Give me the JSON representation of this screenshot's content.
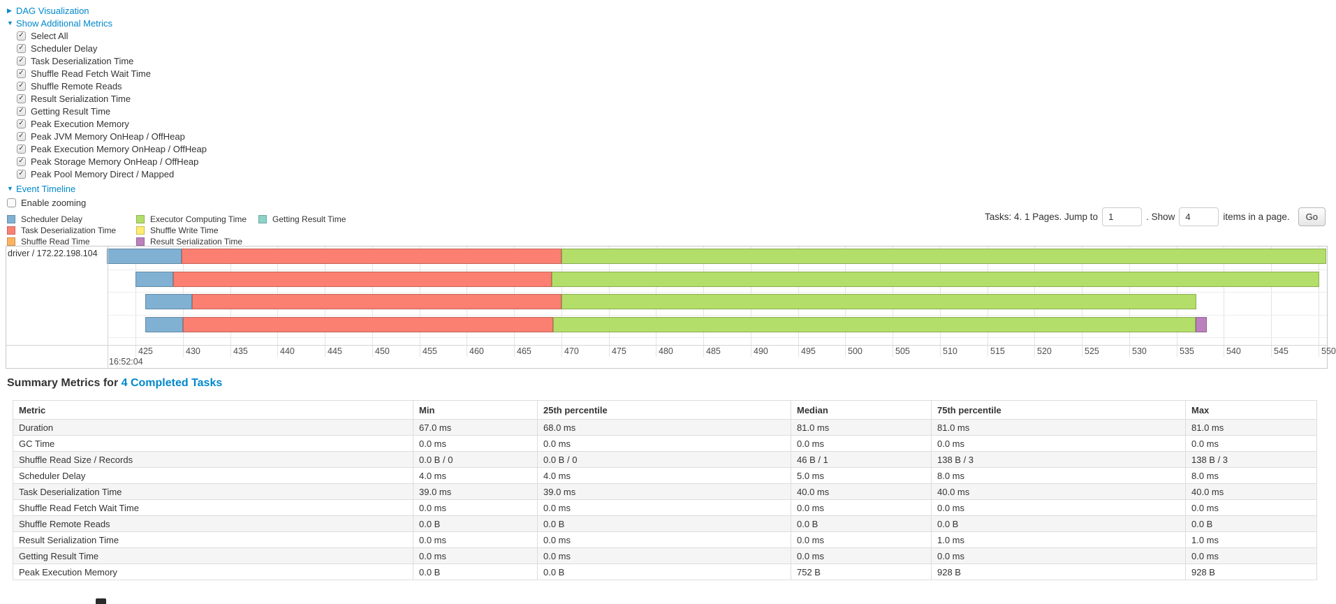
{
  "icons": {
    "collapsed": "▶",
    "expanded": "▼",
    "check": "✓"
  },
  "colors": {
    "link": "#0088cc"
  },
  "controls": {
    "dag_label": "DAG Visualization",
    "metrics_label": "Show Additional Metrics",
    "checkboxes": [
      {
        "label": "Select All",
        "checked": true
      },
      {
        "label": "Scheduler Delay",
        "checked": true
      },
      {
        "label": "Task Deserialization Time",
        "checked": true
      },
      {
        "label": "Shuffle Read Fetch Wait Time",
        "checked": true
      },
      {
        "label": "Shuffle Remote Reads",
        "checked": true
      },
      {
        "label": "Result Serialization Time",
        "checked": true
      },
      {
        "label": "Getting Result Time",
        "checked": true
      },
      {
        "label": "Peak Execution Memory",
        "checked": true
      },
      {
        "label": "Peak JVM Memory OnHeap / OffHeap",
        "checked": true
      },
      {
        "label": "Peak Execution Memory OnHeap / OffHeap",
        "checked": true
      },
      {
        "label": "Peak Storage Memory OnHeap / OffHeap",
        "checked": true
      },
      {
        "label": "Peak Pool Memory Direct / Mapped",
        "checked": true
      }
    ],
    "event_timeline_label": "Event Timeline",
    "enable_zooming": {
      "label": "Enable zooming",
      "checked": false
    }
  },
  "legend": {
    "columns": [
      [
        {
          "key": "scheduler_delay",
          "label": "Scheduler Delay",
          "color": "#80B1D3"
        },
        {
          "key": "task_deserialization",
          "label": "Task Deserialization Time",
          "color": "#FB8072"
        },
        {
          "key": "shuffle_read",
          "label": "Shuffle Read Time",
          "color": "#FDB462"
        }
      ],
      [
        {
          "key": "executor_computing",
          "label": "Executor Computing Time",
          "color": "#B3DE69"
        },
        {
          "key": "shuffle_write",
          "label": "Shuffle Write Time",
          "color": "#FFED6F"
        },
        {
          "key": "result_serialization",
          "label": "Result Serialization Time",
          "color": "#BC80BD"
        }
      ],
      [
        {
          "key": "getting_result",
          "label": "Getting Result Time",
          "color": "#8DD3C7"
        }
      ]
    ]
  },
  "pagination": {
    "prefix": "Tasks: 4. 1 Pages. Jump to",
    "jump_value": "1",
    "mid": ". Show",
    "show_value": "4",
    "suffix": "items in a page.",
    "go_label": "Go"
  },
  "timeline": {
    "row_label": "driver / 172.22.198.104",
    "axis": {
      "tick_start": 425,
      "tick_end": 550,
      "step": 5,
      "major_label": "16:52:04"
    },
    "colors": {
      "scheduler_delay": "#80B1D3",
      "task_deserialization": "#FB8072",
      "shuffle_read": "#FDB462",
      "executor_computing": "#B3DE69",
      "shuffle_write": "#FFED6F",
      "result_serialization": "#BC80BD",
      "getting_result": "#8DD3C7"
    },
    "tasks": [
      {
        "segments": [
          {
            "type": "scheduler_delay",
            "start": 422.0,
            "end": 429.9
          },
          {
            "type": "task_deserialization",
            "start": 429.9,
            "end": 470.0
          },
          {
            "type": "executor_computing",
            "start": 470.0,
            "end": 550.8
          }
        ]
      },
      {
        "segments": [
          {
            "type": "scheduler_delay",
            "start": 425.0,
            "end": 429.0
          },
          {
            "type": "task_deserialization",
            "start": 429.0,
            "end": 469.0
          },
          {
            "type": "executor_computing",
            "start": 469.0,
            "end": 550.1
          }
        ]
      },
      {
        "segments": [
          {
            "type": "scheduler_delay",
            "start": 426.0,
            "end": 431.0
          },
          {
            "type": "task_deserialization",
            "start": 431.0,
            "end": 470.0
          },
          {
            "type": "executor_computing",
            "start": 470.0,
            "end": 537.1
          }
        ]
      },
      {
        "segments": [
          {
            "type": "scheduler_delay",
            "start": 426.0,
            "end": 430.0
          },
          {
            "type": "task_deserialization",
            "start": 430.0,
            "end": 469.1
          },
          {
            "type": "executor_computing",
            "start": 469.1,
            "end": 537.0
          },
          {
            "type": "result_serialization",
            "start": 537.0,
            "end": 538.2
          }
        ]
      }
    ]
  },
  "summary": {
    "title_prefix": "Summary Metrics for ",
    "title_link": "4 Completed Tasks",
    "columns": [
      "Metric",
      "Min",
      "25th percentile",
      "Median",
      "75th percentile",
      "Max"
    ],
    "rows": [
      {
        "metric": "Duration",
        "values": [
          "67.0 ms",
          "68.0 ms",
          "81.0 ms",
          "81.0 ms",
          "81.0 ms"
        ]
      },
      {
        "metric": "GC Time",
        "values": [
          "0.0 ms",
          "0.0 ms",
          "0.0 ms",
          "0.0 ms",
          "0.0 ms"
        ]
      },
      {
        "metric": "Shuffle Read Size / Records",
        "values": [
          "0.0 B / 0",
          "0.0 B / 0",
          "46 B / 1",
          "138 B / 3",
          "138 B / 3"
        ]
      },
      {
        "metric": "Scheduler Delay",
        "values": [
          "4.0 ms",
          "4.0 ms",
          "5.0 ms",
          "8.0 ms",
          "8.0 ms"
        ]
      },
      {
        "metric": "Task Deserialization Time",
        "values": [
          "39.0 ms",
          "39.0 ms",
          "40.0 ms",
          "40.0 ms",
          "40.0 ms"
        ]
      },
      {
        "metric": "Shuffle Read Fetch Wait Time",
        "values": [
          "0.0 ms",
          "0.0 ms",
          "0.0 ms",
          "0.0 ms",
          "0.0 ms"
        ]
      },
      {
        "metric": "Shuffle Remote Reads",
        "values": [
          "0.0 B",
          "0.0 B",
          "0.0 B",
          "0.0 B",
          "0.0 B"
        ]
      },
      {
        "metric": "Result Serialization Time",
        "values": [
          "0.0 ms",
          "0.0 ms",
          "0.0 ms",
          "1.0 ms",
          "1.0 ms"
        ]
      },
      {
        "metric": "Getting Result Time",
        "values": [
          "0.0 ms",
          "0.0 ms",
          "0.0 ms",
          "0.0 ms",
          "0.0 ms"
        ]
      },
      {
        "metric": "Peak Execution Memory",
        "values": [
          "0.0 B",
          "0.0 B",
          "752 B",
          "928 B",
          "928 B"
        ]
      }
    ]
  }
}
